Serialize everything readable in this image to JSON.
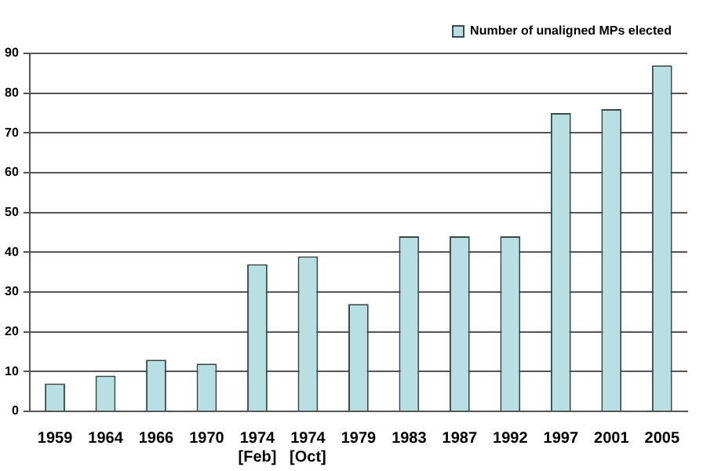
{
  "chart_data": {
    "type": "bar",
    "categories": [
      "1959",
      "1964",
      "1966",
      "1970",
      "1974\n[Feb]",
      "1974\n[Oct]",
      "1979",
      "1983",
      "1987",
      "1992",
      "1997",
      "2001",
      "2005"
    ],
    "series": [
      {
        "name": "Number of unaligned MPs elected",
        "color": "#b8e0e4",
        "values": [
          7,
          9,
          13,
          12,
          37,
          39,
          27,
          44,
          44,
          44,
          75,
          76,
          87
        ]
      }
    ],
    "ylim": [
      0,
      90
    ],
    "yticks": [
      0,
      10,
      20,
      30,
      40,
      50,
      60,
      70,
      80,
      90
    ],
    "grid": "y",
    "legend": "top right"
  }
}
